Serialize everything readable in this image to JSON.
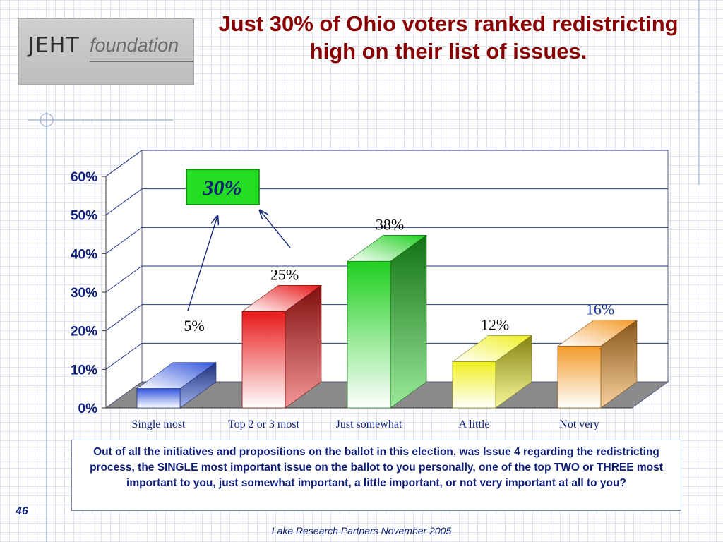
{
  "logo": {
    "text_bold": "JEHT",
    "text_italic": "foundation"
  },
  "slide_title": "Just 30% of Ohio voters ranked redistricting high on their list of issues.",
  "callout": {
    "label": "30%",
    "fill": "#22dd22"
  },
  "chart_data": {
    "type": "bar",
    "categories": [
      "Single most",
      "Top 2 or 3 most",
      "Just somewhat",
      "A little",
      "Not very"
    ],
    "values": [
      5,
      25,
      38,
      12,
      16
    ],
    "value_labels": [
      "5%",
      "25%",
      "38%",
      "12%",
      "16%"
    ],
    "value_label_colors": [
      "#000000",
      "#000000",
      "#000000",
      "#000000",
      "#1a3a9a"
    ],
    "colors": [
      "#3355dd",
      "#e81818",
      "#20d020",
      "#f0f020",
      "#f39a2a"
    ],
    "ylim": [
      0,
      60
    ],
    "y_ticks": [
      "0%",
      "10%",
      "20%",
      "30%",
      "40%",
      "50%",
      "60%"
    ],
    "grid": true,
    "three_d": true
  },
  "question": "Out of all the initiatives and propositions on the ballot in this election, was Issue 4 regarding the redistricting process, the SINGLE most important issue on the ballot to you personally, one of the top TWO or THREE most important to you, just somewhat important, a little important, or not very important at all to you?",
  "page_number": "46",
  "source": "Lake Research Partners November 2005"
}
